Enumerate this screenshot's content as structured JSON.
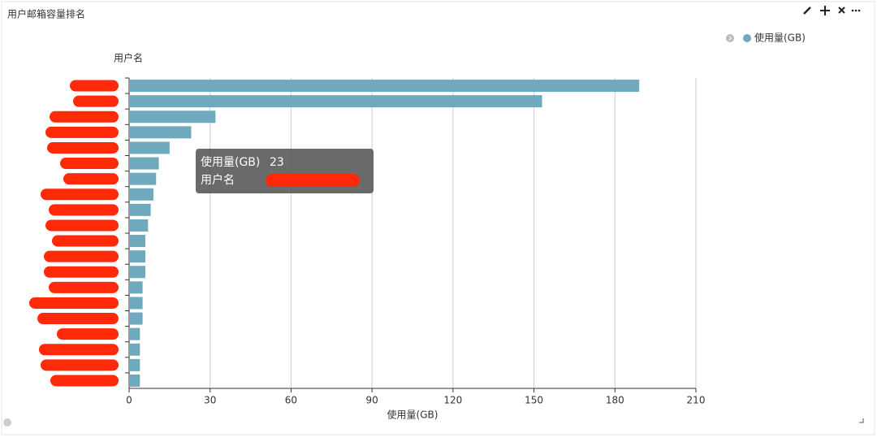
{
  "chart_data": {
    "type": "hbar",
    "title": "用户邮箱容量排名",
    "y_label": "用户名",
    "x_label": "使用量(GB)",
    "categories": [
      null,
      null,
      null,
      null,
      null,
      null,
      null,
      null,
      null,
      null,
      null,
      null,
      null,
      null,
      null,
      null,
      null,
      null,
      null,
      null
    ],
    "series": [
      {
        "name": "使用量(GB)",
        "color": "#6ea9bd",
        "values": [
          189,
          153,
          32,
          23,
          15,
          11,
          10,
          9,
          8,
          7,
          6,
          6,
          6,
          5,
          5,
          5,
          4,
          4,
          4,
          4
        ]
      }
    ],
    "xlim": [
      0,
      210
    ],
    "xticks": [
      0,
      30,
      60,
      90,
      120,
      150,
      180,
      210
    ],
    "grid": true,
    "legend": "top-right",
    "tooltip_index": 3
  }
}
